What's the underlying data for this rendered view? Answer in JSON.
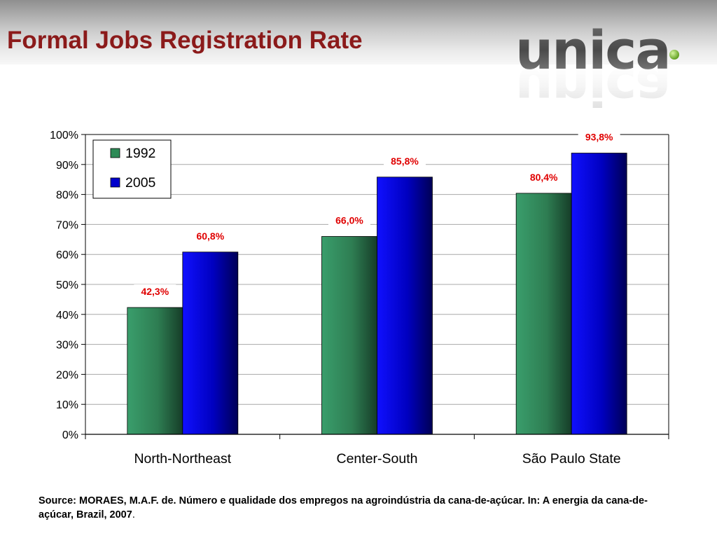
{
  "slide": {
    "title": "Formal Jobs Registration Rate",
    "logo_text": "unica",
    "source_text": "Source: MORAES, M.A.F. de. Número e qualidade dos empregos na agroindústria da cana-de-açúcar. In: A energia da cana-de-açúcar, Brazil, 2007",
    "source_end": "."
  },
  "colors": {
    "title": "#8b1a1a",
    "series_1992": "#2e8b57",
    "series_2005": "#0000cc",
    "data_label": "#e00000"
  },
  "chart_data": {
    "type": "bar",
    "title": "",
    "xlabel": "",
    "ylabel": "",
    "categories": [
      "North-Northeast",
      "Center-South",
      "São Paulo State"
    ],
    "series": [
      {
        "name": "1992",
        "values": [
          42.3,
          66.0,
          80.4
        ],
        "labels": [
          "42,3%",
          "66,0%",
          "80,4%"
        ]
      },
      {
        "name": "2005",
        "values": [
          60.8,
          85.8,
          93.8
        ],
        "labels": [
          "60,8%",
          "85,8%",
          "93,8%"
        ]
      }
    ],
    "ylim": [
      0,
      100
    ],
    "yticks": [
      0,
      10,
      20,
      30,
      40,
      50,
      60,
      70,
      80,
      90,
      100
    ],
    "ytick_labels": [
      "0%",
      "10%",
      "20%",
      "30%",
      "40%",
      "50%",
      "60%",
      "70%",
      "80%",
      "90%",
      "100%"
    ],
    "grid": true,
    "legend_position": "top-left"
  }
}
